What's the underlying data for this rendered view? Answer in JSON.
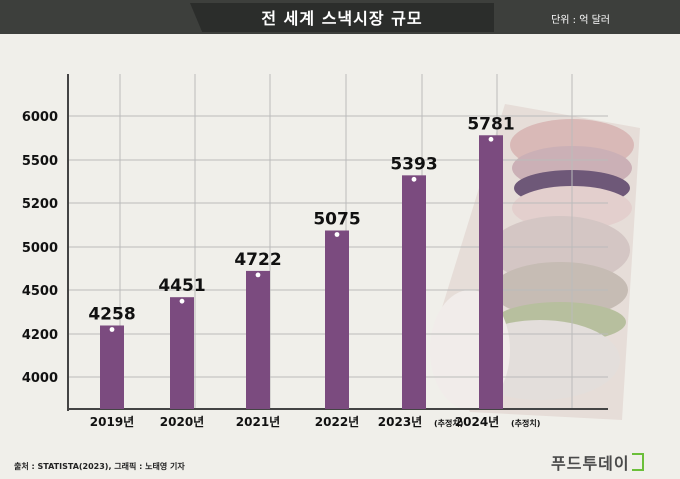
{
  "header": {
    "title": "전 세계 스낵시장 규모",
    "unit": "단위 : 억 달러"
  },
  "chart_data": {
    "type": "bar",
    "categories": [
      "2019년",
      "2020년",
      "2021년",
      "2022년",
      "2023년",
      "2024년"
    ],
    "category_notes": [
      "",
      "",
      "",
      "",
      "(추정치)",
      "(추정치)"
    ],
    "values": [
      4258,
      4451,
      4722,
      5075,
      5393,
      5781
    ],
    "yticks": [
      4000,
      4200,
      4500,
      5000,
      5200,
      5500,
      6000
    ],
    "bar_color": "#7b4b7f",
    "grid": true
  },
  "footer": {
    "source": "출처 : STATISTA(2023), 그래픽 : 노태영 기자",
    "brand": "푸드투데이",
    "brand_color": "#6bbf3a"
  }
}
